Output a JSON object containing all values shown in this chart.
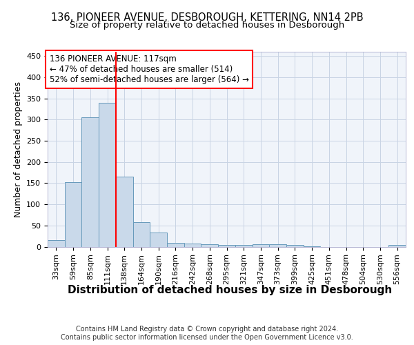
{
  "title_line1": "136, PIONEER AVENUE, DESBOROUGH, KETTERING, NN14 2PB",
  "title_line2": "Size of property relative to detached houses in Desborough",
  "xlabel": "Distribution of detached houses by size in Desborough",
  "ylabel": "Number of detached properties",
  "footer_line1": "Contains HM Land Registry data © Crown copyright and database right 2024.",
  "footer_line2": "Contains public sector information licensed under the Open Government Licence v3.0.",
  "annotation_line1": "136 PIONEER AVENUE: 117sqm",
  "annotation_line2": "← 47% of detached houses are smaller (514)",
  "annotation_line3": "52% of semi-detached houses are larger (564) →",
  "bar_color": "#c9d9ea",
  "bar_edge_color": "#6699bb",
  "vline_color": "red",
  "grid_color": "#c8d4e4",
  "background_color": "#f0f4fa",
  "categories": [
    "33sqm",
    "59sqm",
    "85sqm",
    "111sqm",
    "138sqm",
    "164sqm",
    "190sqm",
    "216sqm",
    "242sqm",
    "268sqm",
    "295sqm",
    "321sqm",
    "347sqm",
    "373sqm",
    "399sqm",
    "425sqm",
    "451sqm",
    "478sqm",
    "504sqm",
    "530sqm",
    "556sqm"
  ],
  "values": [
    15,
    153,
    305,
    340,
    165,
    57,
    33,
    9,
    7,
    5,
    4,
    4,
    5,
    5,
    4,
    1,
    0,
    0,
    0,
    0,
    4
  ],
  "ylim": [
    0,
    460
  ],
  "yticks": [
    0,
    50,
    100,
    150,
    200,
    250,
    300,
    350,
    400,
    450
  ],
  "vline_x": 3.5,
  "title_fontsize": 10.5,
  "subtitle_fontsize": 9.5,
  "xlabel_fontsize": 11,
  "ylabel_fontsize": 9,
  "tick_fontsize": 8,
  "annotation_fontsize": 8.5,
  "footer_fontsize": 7
}
